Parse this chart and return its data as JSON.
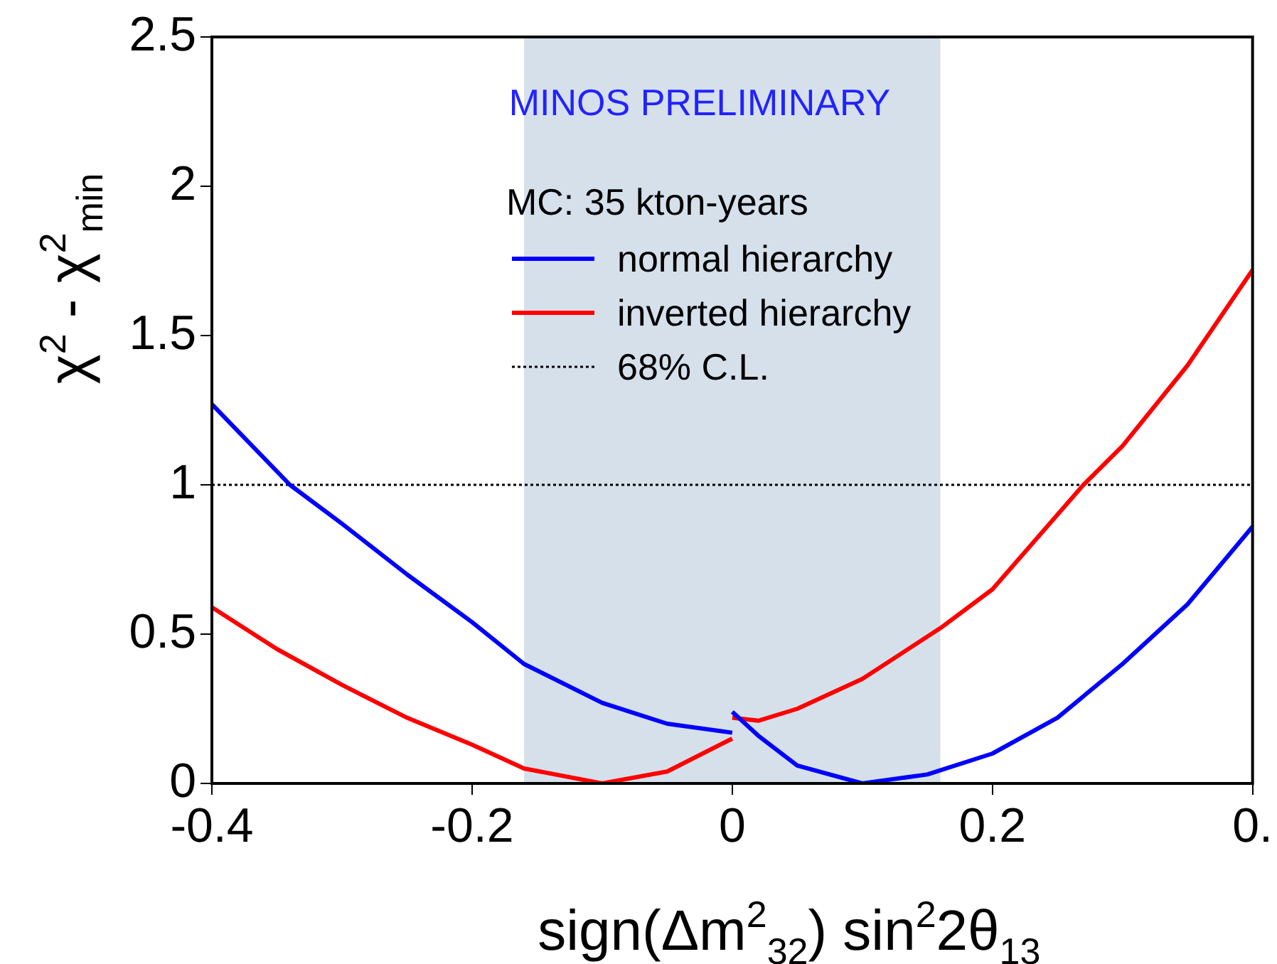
{
  "chart_data": {
    "type": "line",
    "xlabel": "sign(Δm$^{2}$$_{32}$) sin$^{2}$2θ$_{13}$",
    "ylabel": "χ$^{2}$ - χ$^{2}$$_{min}$",
    "legend_title": "MC: 35 kton-years",
    "annotations": [
      "MINOS PRELIMINARY"
    ],
    "xlim": [
      -0.4,
      0.4
    ],
    "xticks": [
      -0.4,
      -0.2,
      0,
      0.2,
      {
        "value": 0.4,
        "label": "0."
      }
    ],
    "ylim": [
      0,
      2.5
    ],
    "yticks": [
      0,
      0.5,
      1,
      1.5,
      2,
      2.5
    ],
    "legend": "top",
    "marker": "none",
    "line_style": "solid",
    "series": [
      {
        "name": "normal hierarchy",
        "color": "#0000ff",
        "x": [
          -0.4,
          -0.34,
          -0.3,
          -0.25,
          -0.2,
          -0.16,
          -0.1,
          -0.05,
          0,
          null,
          0,
          0.02,
          0.05,
          0.1,
          0.15,
          0.2,
          0.25,
          0.3,
          0.35,
          0.4
        ],
        "values": [
          1.27,
          1.0,
          0.87,
          0.7,
          0.54,
          0.4,
          0.27,
          0.2,
          0.17,
          null,
          0.24,
          0.16,
          0.06,
          0.0,
          0.03,
          0.1,
          0.22,
          0.4,
          0.6,
          0.86
        ]
      },
      {
        "name": "inverted hierarchy",
        "color": "#ff0000",
        "x": [
          -0.4,
          -0.35,
          -0.3,
          -0.25,
          -0.2,
          -0.16,
          -0.1,
          -0.05,
          0,
          null,
          0,
          0.02,
          0.05,
          0.1,
          0.16,
          0.2,
          0.27,
          0.3,
          0.35,
          0.4
        ],
        "values": [
          0.59,
          0.45,
          0.33,
          0.22,
          0.13,
          0.05,
          0.0,
          0.04,
          0.15,
          null,
          0.22,
          0.21,
          0.25,
          0.35,
          0.52,
          0.65,
          1.0,
          1.13,
          1.4,
          1.72
        ]
      }
    ],
    "ref_lines": [
      {
        "axis": "y",
        "value": 1,
        "label": "68% C.L.",
        "color": "#000000",
        "line_style": "dotted"
      }
    ],
    "bands": [
      {
        "axis": "x",
        "from": -0.16,
        "to": 0.16,
        "color": "#d5e0eb"
      }
    ]
  }
}
